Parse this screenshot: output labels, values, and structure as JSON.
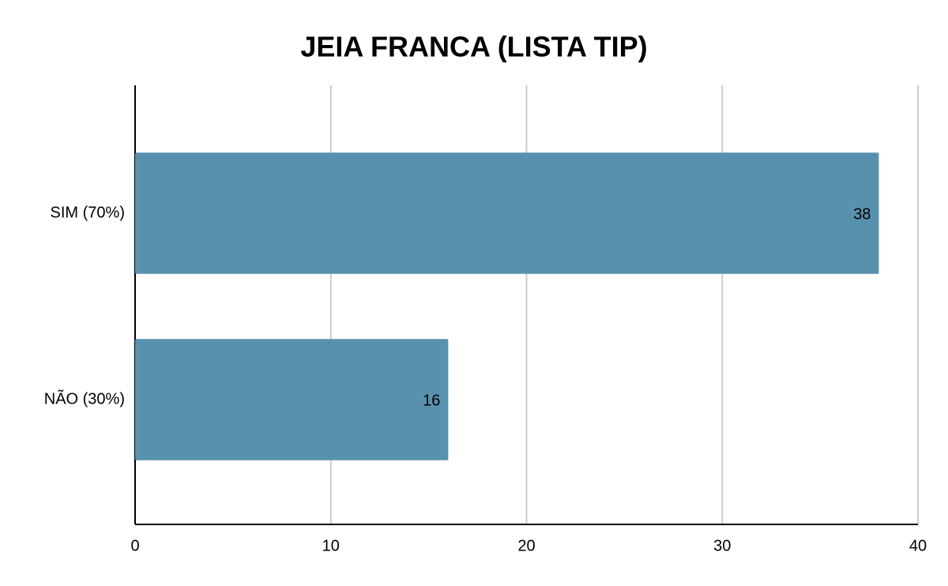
{
  "chart_data": {
    "type": "bar",
    "orientation": "horizontal",
    "title": "JEIA FRANCA (LISTA TIP)",
    "categories": [
      "SIM (70%)",
      "NÃO (30%)"
    ],
    "values": [
      38,
      16
    ],
    "color": "#5891ae",
    "xlim": [
      0,
      40
    ],
    "xticks": [
      0,
      10,
      20,
      30,
      40
    ],
    "grid": true,
    "data_labels": true
  }
}
